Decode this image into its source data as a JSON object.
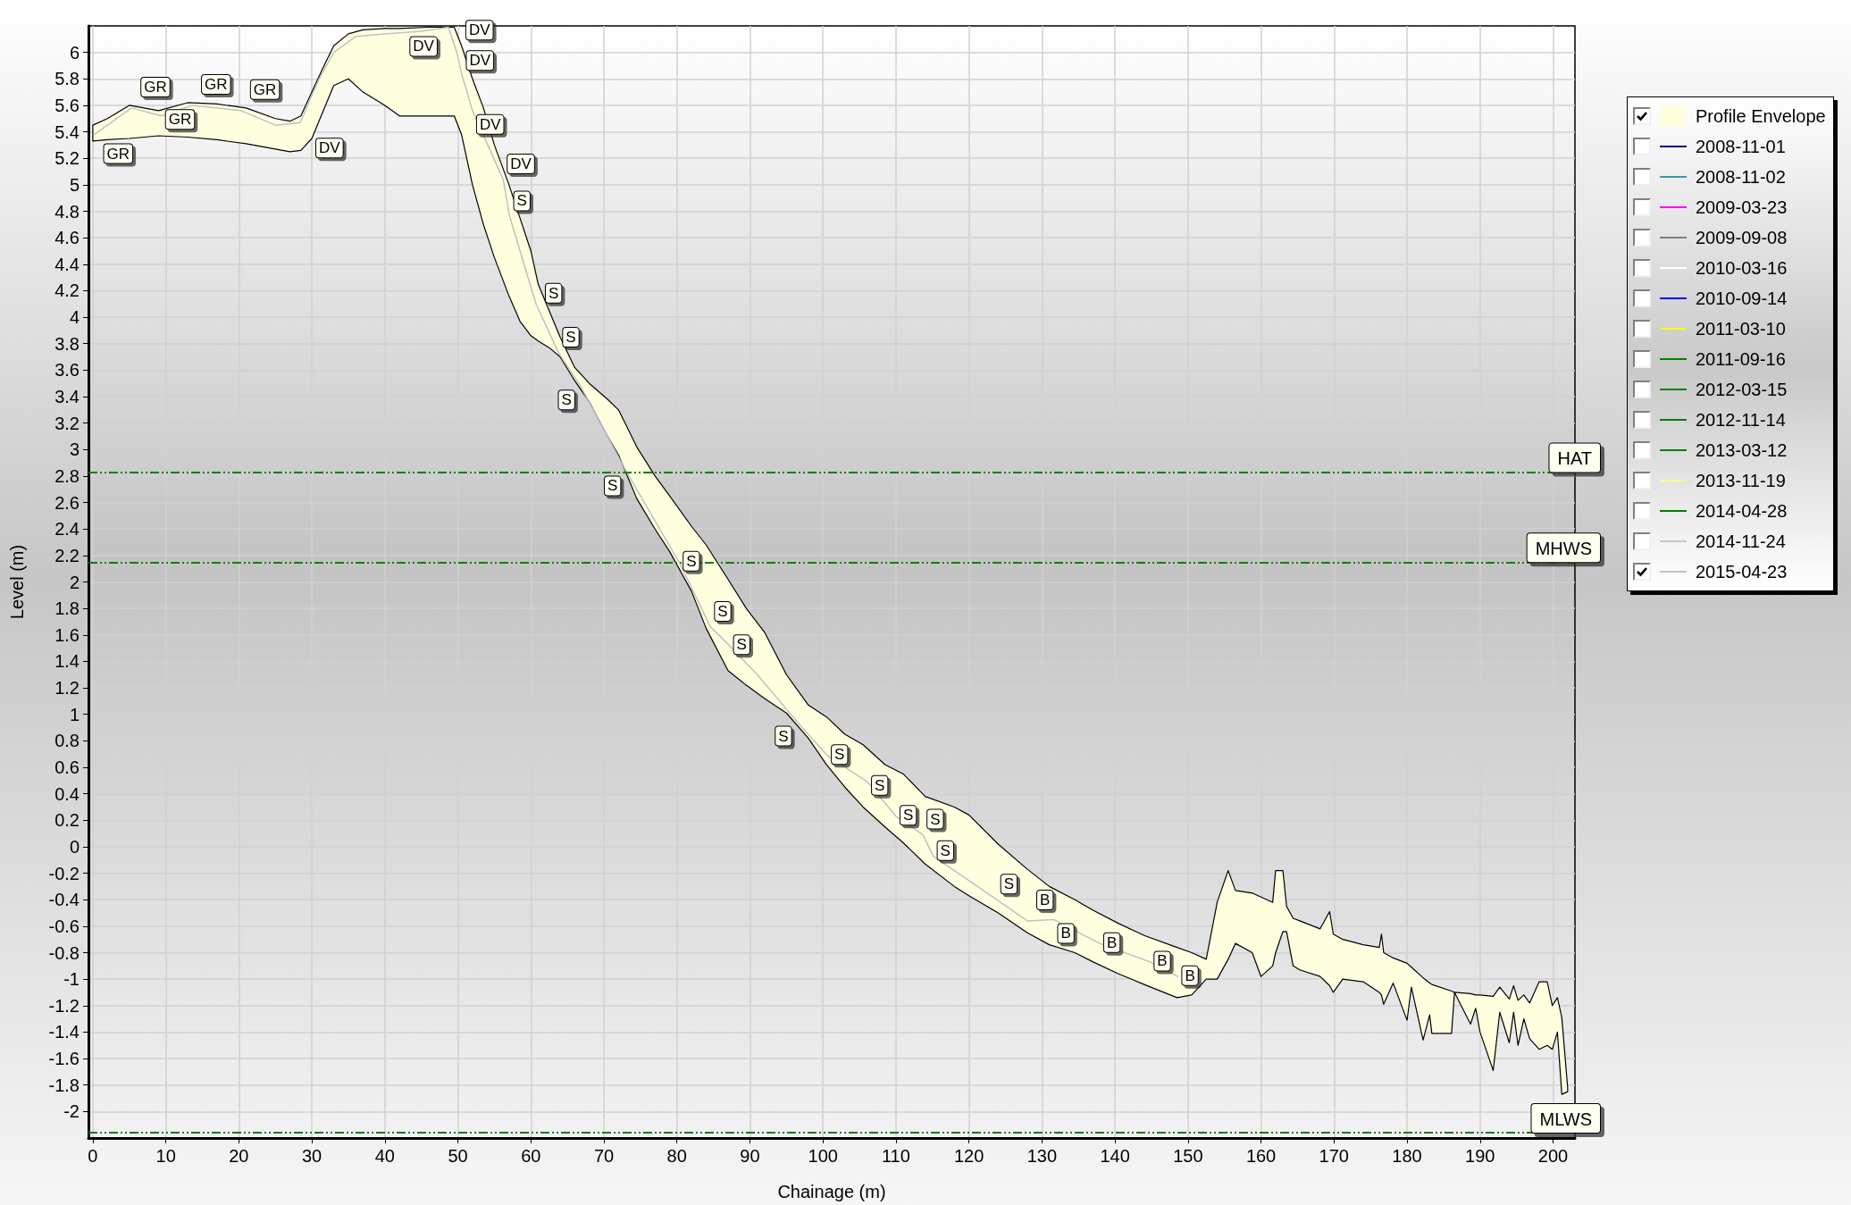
{
  "chart_data": {
    "type": "line",
    "xlabel": "Chainage (m)",
    "ylabel": "Level (m)",
    "xlim": [
      -0.6,
      203
    ],
    "ylim": [
      -2.2,
      6.2
    ],
    "xticks": [
      0,
      10,
      20,
      30,
      40,
      50,
      60,
      70,
      80,
      90,
      100,
      110,
      120,
      130,
      140,
      150,
      160,
      170,
      180,
      190,
      200
    ],
    "yticks": [
      -2,
      -1.8,
      -1.6,
      -1.4,
      -1.2,
      -1,
      -0.8,
      -0.6,
      -0.4,
      -0.2,
      0,
      0.2,
      0.4,
      0.6,
      0.8,
      1,
      1.2,
      1.4,
      1.6,
      1.8,
      2,
      2.2,
      2.4,
      2.6,
      2.8,
      3,
      3.2,
      3.4,
      3.6,
      3.8,
      4,
      4.2,
      4.4,
      4.6,
      4.8,
      5,
      5.2,
      5.4,
      5.6,
      5.8,
      6
    ],
    "grid": true,
    "legend": "top right",
    "series": [
      {
        "name": "Profile Envelope",
        "type": "area",
        "color": "#ffffe0",
        "x": [
          0,
          2,
          5,
          9,
          13,
          17,
          21,
          25,
          27,
          28.5,
          30,
          31.5,
          33,
          35,
          37,
          40,
          42,
          46,
          49.5,
          50.5,
          52,
          53.5,
          55,
          57,
          58.5,
          60,
          61,
          62.5,
          64,
          66,
          68,
          70.5,
          72,
          74.5,
          77,
          79,
          82,
          84,
          87,
          89.5,
          92,
          95,
          98,
          100.5,
          103,
          105.5,
          108.5,
          111,
          114,
          118,
          120,
          124,
          128,
          131,
          134.5,
          137,
          140.5,
          144,
          148.5,
          150.5,
          152.5,
          154,
          155.5,
          156.5,
          158.8,
          160,
          161.6,
          162,
          163,
          163.5,
          164.4,
          165.3,
          168.1,
          169.4,
          169.9,
          171.2,
          174,
          176.2,
          176.5,
          176.8,
          178.1,
          180,
          180.6,
          182.2,
          183.1,
          183.4,
          186.1,
          186.5,
          188.7,
          189.4,
          190,
          191.8,
          192.7,
          194,
          194.6,
          195.2,
          196,
          196.8,
          198.1,
          199.2,
          199.9,
          200.6,
          201.2,
          202
        ],
        "values": [
          null,
          null,
          null,
          null,
          null,
          null,
          null,
          null,
          null,
          null,
          null,
          null,
          null,
          null,
          null,
          null,
          null,
          null,
          null,
          null,
          null,
          null,
          null,
          null,
          null,
          null,
          null,
          null,
          null,
          null,
          null,
          null,
          null,
          null,
          null,
          null,
          null,
          null,
          null,
          null,
          null,
          null,
          null,
          null,
          null,
          null,
          null,
          null,
          null,
          null,
          null,
          null,
          null,
          null,
          null,
          null,
          null,
          null,
          null,
          null,
          null,
          null,
          null,
          null,
          null,
          null,
          null,
          null,
          null,
          null,
          null,
          null,
          null,
          null,
          null,
          null,
          null,
          null,
          null,
          null,
          null,
          null,
          null,
          null,
          null,
          null,
          null,
          null,
          null,
          null,
          null,
          null,
          null,
          null,
          null,
          null,
          null,
          null,
          null,
          null,
          null,
          null,
          null,
          null
        ],
        "lower": [
          5.33,
          5.34,
          5.35,
          5.37,
          5.36,
          5.34,
          5.31,
          5.27,
          5.25,
          5.26,
          5.35,
          5.55,
          5.75,
          5.8,
          5.7,
          5.6,
          5.52,
          5.52,
          5.52,
          5.38,
          5,
          4.7,
          4.45,
          4.16,
          3.97,
          3.86,
          3.82,
          3.77,
          3.7,
          3.52,
          3.36,
          3.1,
          2.96,
          2.63,
          2.4,
          2.23,
          1.93,
          1.65,
          1.33,
          1.22,
          1.12,
          1.01,
          0.82,
          0.62,
          0.45,
          0.3,
          0.15,
          0.03,
          -0.13,
          -0.3,
          -0.37,
          -0.5,
          -0.65,
          -0.74,
          -0.8,
          -0.87,
          -0.96,
          -1.04,
          -1.14,
          -1.12,
          -1,
          -1,
          -0.85,
          -0.73,
          -0.8,
          -0.98,
          -0.9,
          -0.8,
          -0.64,
          -0.64,
          -0.9,
          -0.93,
          -0.98,
          -1.05,
          -1.1,
          -1,
          -1.02,
          -1.1,
          -1.12,
          -1.19,
          -1.03,
          -1.31,
          -1.06,
          -1.46,
          -1.27,
          -1.41,
          -1.41,
          -1.1,
          -1.34,
          -1.22,
          -1.4,
          -1.69,
          -1.25,
          -1.48,
          -1.25,
          -1.5,
          -1.3,
          -1.45,
          -1.53,
          -1.5,
          -1.53,
          -1.4,
          -1.87,
          -1.85
        ],
        "upper": [
          5.45,
          5.5,
          5.6,
          5.56,
          5.62,
          5.61,
          5.58,
          5.5,
          5.48,
          5.52,
          5.7,
          5.88,
          6.05,
          6.14,
          6.17,
          6.18,
          6.18,
          6.19,
          6.19,
          6.05,
          5.8,
          5.58,
          5.3,
          5,
          4.75,
          4.5,
          4.25,
          4.05,
          3.85,
          3.62,
          3.5,
          3.38,
          3.3,
          3.02,
          2.8,
          2.65,
          2.42,
          2.28,
          2.02,
          1.8,
          1.62,
          1.3,
          1.07,
          0.98,
          0.85,
          0.77,
          0.62,
          0.55,
          0.38,
          0.3,
          0.24,
          0.02,
          -0.17,
          -0.3,
          -0.4,
          -0.48,
          -0.58,
          -0.67,
          -0.76,
          -0.8,
          -0.85,
          -0.42,
          -0.18,
          -0.33,
          -0.35,
          -0.38,
          -0.42,
          -0.18,
          -0.18,
          -0.45,
          -0.54,
          -0.56,
          -0.62,
          -0.49,
          -0.66,
          -0.7,
          -0.74,
          -0.76,
          -0.66,
          -0.8,
          -0.84,
          -0.88,
          -0.91,
          -0.99,
          -1.03,
          -1.04,
          -1.09,
          -1.1,
          -1.11,
          -1.12,
          -1.12,
          -1.13,
          -1.06,
          -1.15,
          -1.05,
          -1.16,
          -1.12,
          -1.18,
          -1.02,
          -1.02,
          -1.2,
          -1.14,
          -1.29,
          -1.82
        ]
      },
      {
        "name": "2008-11-01",
        "type": "line",
        "color": "#000080"
      },
      {
        "name": "2008-11-02",
        "type": "line",
        "color": "#339ca8"
      },
      {
        "name": "2009-03-23",
        "type": "line",
        "color": "#ff00ff"
      },
      {
        "name": "2009-09-08",
        "type": "line",
        "color": "#808080"
      },
      {
        "name": "2010-03-16",
        "type": "line",
        "color": "#ffffff"
      },
      {
        "name": "2010-09-14",
        "type": "line",
        "color": "#0000ff"
      },
      {
        "name": "2011-03-10",
        "type": "line",
        "color": "#ffff00"
      },
      {
        "name": "2011-09-16",
        "type": "line",
        "color": "#008000"
      },
      {
        "name": "2012-03-15",
        "type": "line",
        "color": "#008000"
      },
      {
        "name": "2012-11-14",
        "type": "line",
        "color": "#008000"
      },
      {
        "name": "2013-03-12",
        "type": "line",
        "color": "#008000"
      },
      {
        "name": "2013-11-19",
        "type": "line",
        "color": "#ffff80"
      },
      {
        "name": "2014-04-28",
        "type": "line",
        "color": "#008000"
      },
      {
        "name": "2014-11-24",
        "type": "line",
        "color": "#c8c8c8"
      },
      {
        "name": "2015-04-23",
        "type": "line",
        "color": "#c0c0c0",
        "x": [
          0.2,
          5.3,
          9.4,
          13.6,
          20.3,
          25,
          28.4,
          31,
          33,
          36,
          40,
          45,
          48.7,
          49.8,
          50.6,
          52,
          56.2,
          57.1,
          60.7,
          63.8,
          66.8,
          73.1,
          80.3,
          84.6,
          87.2,
          91,
          96.5,
          100.6,
          106.1,
          110,
          113.7,
          115.1,
          123.8,
          128,
          131.6,
          137.9,
          144.8,
          148.6
        ],
        "values": [
          5.38,
          5.58,
          5.52,
          5.6,
          5.56,
          5.45,
          5.47,
          5.8,
          6,
          6.12,
          6.14,
          6.16,
          6.19,
          6.01,
          5.82,
          5.56,
          5.04,
          4.76,
          4.1,
          3.73,
          3.48,
          2.83,
          2.15,
          1.66,
          1.52,
          1.3,
          0.94,
          0.69,
          0.49,
          0.23,
          0.09,
          -0.07,
          -0.4,
          -0.56,
          -0.55,
          -0.73,
          -0.87,
          -0.98
        ]
      }
    ],
    "ref_lines": [
      {
        "axis": "y",
        "value": 2.83,
        "label": "HAT",
        "color": "#008000",
        "line_style": "dashed"
      },
      {
        "axis": "y",
        "value": 2.15,
        "label": "MHWS",
        "color": "#008000",
        "line_style": "dashed"
      },
      {
        "axis": "y",
        "value": -2.16,
        "label": "MLWS",
        "color": "#008000",
        "line_style": "dashed"
      }
    ],
    "annotations": [
      {
        "text": "GR",
        "x": 0.2,
        "y": 5.38
      },
      {
        "text": "GR",
        "x": 5.3,
        "y": 5.58
      },
      {
        "text": "GR",
        "x": 9.4,
        "y": 5.52
      },
      {
        "text": "GR",
        "x": 13.6,
        "y": 5.6
      },
      {
        "text": "GR",
        "x": 20.3,
        "y": 5.56
      },
      {
        "text": "DV",
        "x": 28.4,
        "y": 5.47
      },
      {
        "text": "DV",
        "x": 48.7,
        "y": 6.19
      },
      {
        "text": "DV",
        "x": 49.8,
        "y": 6.01
      },
      {
        "text": "DV",
        "x": 50.6,
        "y": 5.82
      },
      {
        "text": "DV",
        "x": 52,
        "y": 5.56
      },
      {
        "text": "DV",
        "x": 56.2,
        "y": 5.04
      },
      {
        "text": "S",
        "x": 57.1,
        "y": 4.76
      },
      {
        "text": "S",
        "x": 60.7,
        "y": 4.1
      },
      {
        "text": "S",
        "x": 63.8,
        "y": 3.73
      },
      {
        "text": "S",
        "x": 66.8,
        "y": 3.48
      },
      {
        "text": "S",
        "x": 73.1,
        "y": 2.83
      },
      {
        "text": "S",
        "x": 80.3,
        "y": 2.15
      },
      {
        "text": "S",
        "x": 84.6,
        "y": 1.66
      },
      {
        "text": "S",
        "x": 87.2,
        "y": 1.52
      },
      {
        "text": "S",
        "x": 96.5,
        "y": 0.94
      },
      {
        "text": "S",
        "x": 100.6,
        "y": 0.69
      },
      {
        "text": "S",
        "x": 106.1,
        "y": 0.49
      },
      {
        "text": "S",
        "x": 110,
        "y": 0.23
      },
      {
        "text": "S",
        "x": 113.7,
        "y": 0.09
      },
      {
        "text": "S",
        "x": 115.1,
        "y": -0.07
      },
      {
        "text": "S",
        "x": 123.8,
        "y": -0.4
      },
      {
        "text": "B",
        "x": 128,
        "y": -0.56
      },
      {
        "text": "B",
        "x": 131.6,
        "y": -0.55
      },
      {
        "text": "B",
        "x": 137.9,
        "y": -0.73
      },
      {
        "text": "B",
        "x": 144.8,
        "y": -0.87
      },
      {
        "text": "B",
        "x": 148.6,
        "y": -0.98
      }
    ]
  }
}
